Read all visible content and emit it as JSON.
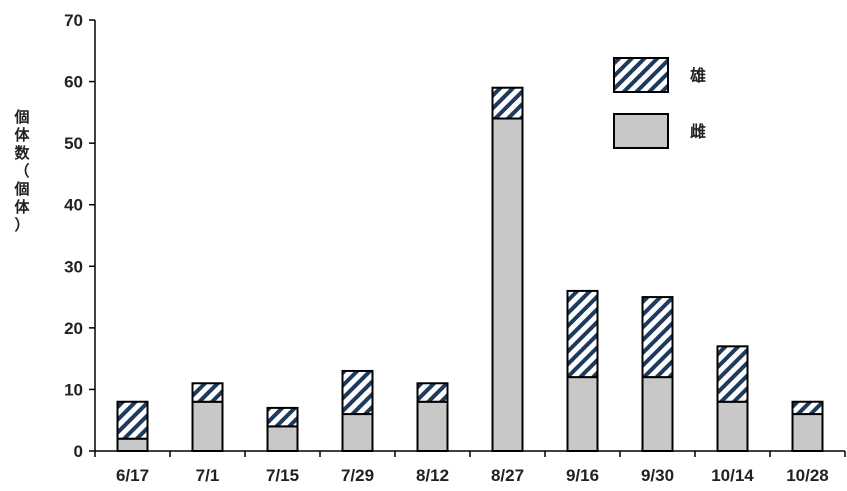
{
  "chart_data": {
    "type": "bar",
    "stacked": true,
    "categories": [
      "6/17",
      "7/1",
      "7/15",
      "7/29",
      "8/12",
      "8/27",
      "9/16",
      "9/30",
      "10/14",
      "10/28"
    ],
    "series": [
      {
        "name": "雌",
        "values": [
          2,
          8,
          4,
          6,
          8,
          54,
          12,
          12,
          8,
          6
        ],
        "color": "#c8c8c8",
        "pattern": "solid"
      },
      {
        "name": "雄",
        "values": [
          6,
          3,
          3,
          7,
          3,
          5,
          14,
          13,
          9,
          2
        ],
        "color": "#1f3a5f",
        "pattern": "diagonal-hatch"
      }
    ],
    "ylabel": "個体数（個体）",
    "ylabel_chars": [
      "個",
      "体",
      "数",
      "（",
      "個",
      "体",
      "）"
    ],
    "ylim": [
      0,
      70
    ],
    "yticks": [
      0,
      10,
      20,
      30,
      40,
      50,
      60,
      70
    ],
    "grid": false,
    "legend": {
      "position": "top-right",
      "order": [
        "雄",
        "雌"
      ]
    }
  }
}
